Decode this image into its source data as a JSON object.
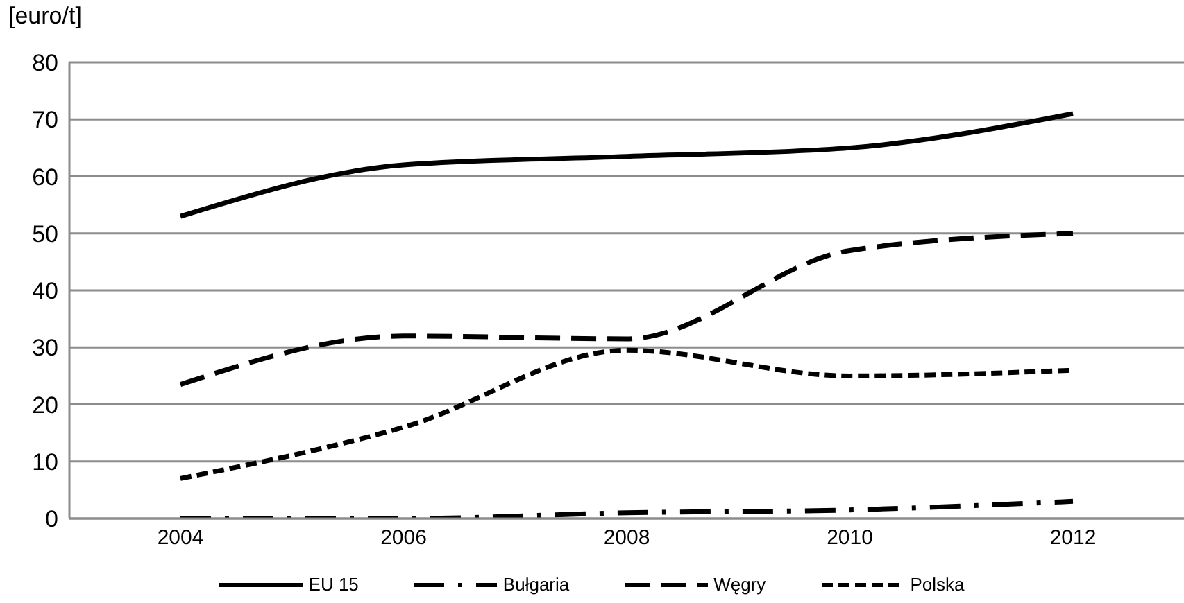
{
  "chart_data": {
    "type": "line",
    "ylabel": "[euro/t]",
    "categories": [
      "2004",
      "2006",
      "2008",
      "2010",
      "2012"
    ],
    "series": [
      {
        "name": "EU 15",
        "color": "#000000",
        "line_style": "solid",
        "values": [
          53,
          62,
          63.5,
          65,
          71
        ]
      },
      {
        "name": "Bułgaria",
        "color": "#000000",
        "line_style": "dashdot",
        "values": [
          0,
          0,
          1,
          1.5,
          3
        ]
      },
      {
        "name": "Węgry",
        "color": "#000000",
        "line_style": "dashed",
        "values": [
          23.5,
          32,
          31.5,
          47,
          50
        ]
      },
      {
        "name": "Polska",
        "color": "#000000",
        "line_style": "dotted",
        "values": [
          7,
          16,
          29.5,
          25,
          26
        ]
      }
    ],
    "ylim": [
      0,
      80
    ],
    "yticks": [
      0,
      10,
      20,
      30,
      40,
      50,
      60,
      70,
      80
    ],
    "grid": "y",
    "legend": "bottom",
    "marker": "none"
  }
}
